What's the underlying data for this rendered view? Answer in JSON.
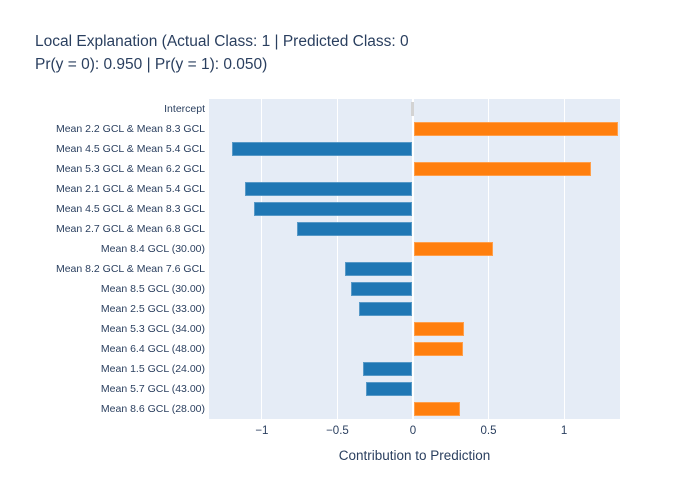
{
  "title": {
    "line1": "Local Explanation (Actual Class: 1 | Predicted Class: 0",
    "line2": "Pr(y = 0): 0.950 | Pr(y = 1): 0.050)"
  },
  "x_axis": {
    "label": "Contribution to Prediction"
  },
  "chart_data": {
    "type": "bar",
    "orientation": "horizontal",
    "title": "Local Explanation (Actual Class: 1 | Predicted Class: 0 Pr(y = 0): 0.950 | Pr(y = 1): 0.050)",
    "xlabel": "Contribution to Prediction",
    "ylabel": "",
    "xlim": [
      -1.35,
      1.37
    ],
    "grid": true,
    "legend": "none",
    "categories": [
      "Intercept",
      "Mean 2.2 GCL & Mean 8.3 GCL",
      "Mean 4.5 GCL & Mean 5.4 GCL",
      "Mean 5.3 GCL & Mean 6.2 GCL",
      "Mean 2.1 GCL & Mean 5.4 GCL",
      "Mean 4.5 GCL & Mean 8.3 GCL",
      "Mean 2.7 GCL & Mean 6.8 GCL",
      "Mean 8.4 GCL (30.00)",
      "Mean 8.2 GCL & Mean 7.6 GCL",
      "Mean 8.5 GCL (30.00)",
      "Mean 2.5 GCL (33.00)",
      "Mean 5.3 GCL (34.00)",
      "Mean 6.4 GCL (48.00)",
      "Mean 1.5 GCL (24.00)",
      "Mean 5.7 GCL (43.00)",
      "Mean 8.6 GCL (28.00)"
    ],
    "values": [
      0.0,
      1.36,
      -1.2,
      1.18,
      -1.11,
      -1.05,
      -0.77,
      0.53,
      -0.45,
      -0.41,
      -0.36,
      0.34,
      0.33,
      -0.33,
      -0.31,
      0.31
    ],
    "x_ticks": [
      "−1",
      "−0.5",
      "0",
      "0.5",
      "1"
    ],
    "x_tick_values": [
      -1,
      -0.5,
      0,
      0.5,
      1
    ],
    "colors": {
      "positive": "#ff7f0e",
      "negative": "#1f77b4",
      "intercept": "#d3d3d3",
      "plot_background": "#e5ecf6",
      "gridline": "#ffffff",
      "zero_line": "#ffffff",
      "text": "#2a3f5f"
    }
  }
}
